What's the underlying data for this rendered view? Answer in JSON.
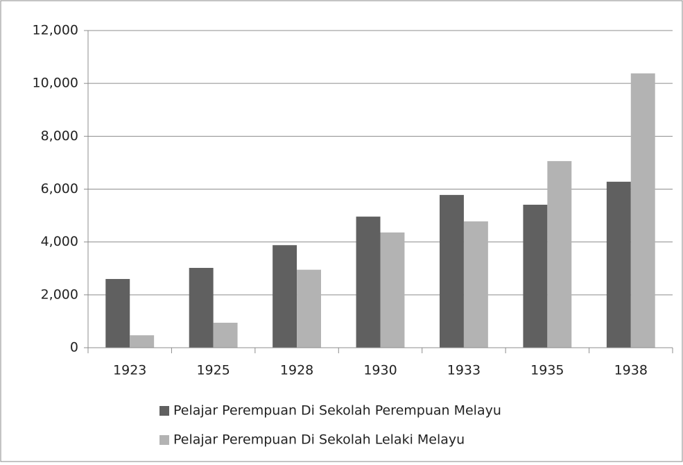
{
  "chart_data": {
    "type": "bar",
    "categories": [
      "1923",
      "1925",
      "1928",
      "1930",
      "1933",
      "1935",
      "1938"
    ],
    "series": [
      {
        "name": "Pelajar Perempuan Di Sekolah Perempuan Melayu",
        "color": "#606060",
        "values": [
          2600,
          3020,
          3880,
          4960,
          5780,
          5410,
          6280
        ]
      },
      {
        "name": "Pelajar Perempuan Di Sekolah Lelaki Melayu",
        "color": "#b3b3b3",
        "values": [
          470,
          945,
          2950,
          4360,
          4780,
          7060,
          10380
        ]
      }
    ],
    "ylim": [
      0,
      12000
    ],
    "yticks": [
      0,
      {
        "value": 2000,
        "label": "2,000"
      },
      {
        "value": 4000,
        "label": "4,000"
      },
      {
        "value": 6000,
        "label": "6,000"
      },
      {
        "value": 8000,
        "label": "8,000"
      },
      {
        "value": 10000,
        "label": "10,000"
      },
      {
        "value": 12000,
        "label": "12,000"
      }
    ],
    "grid": true,
    "legend": "bottom"
  }
}
